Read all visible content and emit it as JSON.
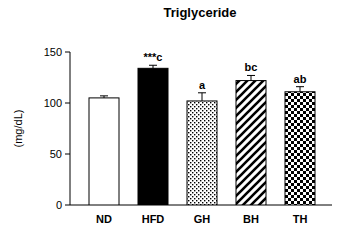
{
  "chart_data": {
    "type": "bar",
    "title": "Triglyceride",
    "y_label": "(mg/dL)",
    "categories": [
      "ND",
      "HFD",
      "GH",
      "BH",
      "TH"
    ],
    "values": [
      105,
      134,
      102,
      122,
      111
    ],
    "errors": [
      2,
      3,
      8,
      5,
      5
    ],
    "significance": [
      null,
      "***c",
      "a",
      "bc",
      "ab"
    ],
    "ylim": [
      0,
      150
    ],
    "yticks": [
      0,
      50,
      100,
      150
    ],
    "grid": false
  }
}
